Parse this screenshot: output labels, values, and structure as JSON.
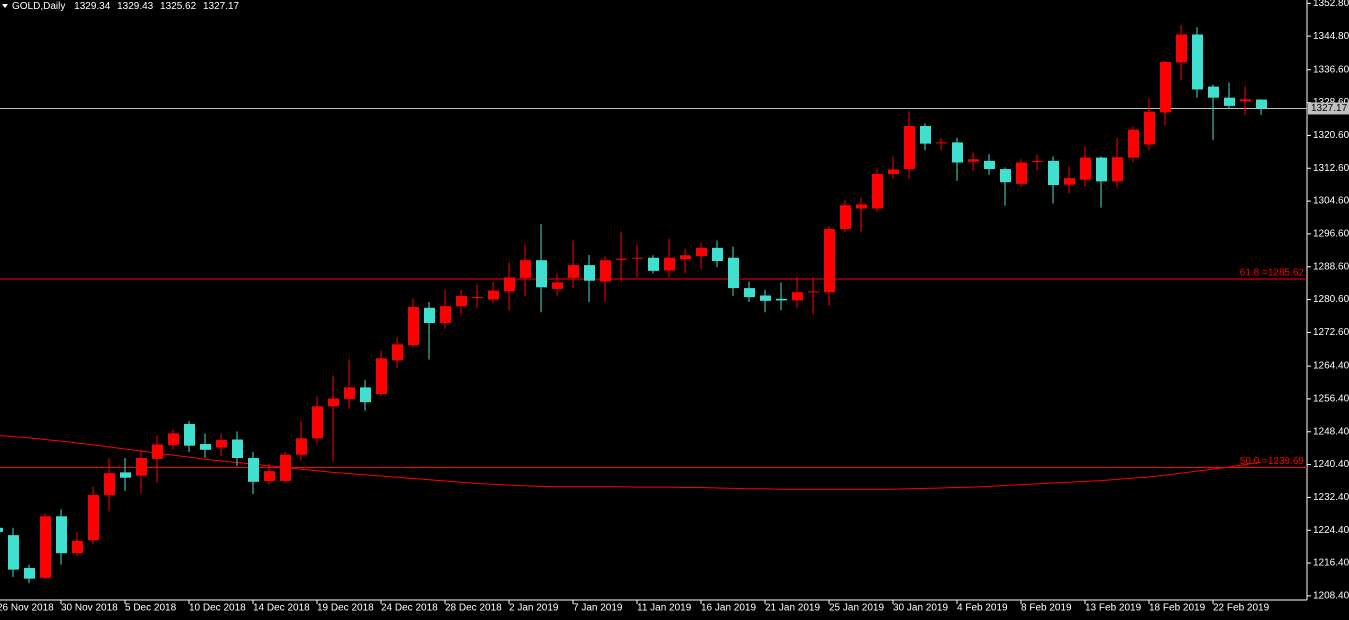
{
  "chart_data": {
    "type": "candlestick",
    "title": "GOLD,Daily",
    "categories": [
      "26 Nov 2018",
      null,
      null,
      null,
      "30 Nov 2018",
      null,
      null,
      null,
      "5 Dec 2018",
      null,
      null,
      null,
      "10 Dec 2018",
      null,
      null,
      null,
      "14 Dec 2018",
      null,
      null,
      null,
      "19 Dec 2018",
      null,
      null,
      null,
      "24 Dec 2018",
      null,
      null,
      null,
      "28 Dec 2018",
      null,
      null,
      null,
      "2 Jan 2019",
      null,
      null,
      null,
      "7 Jan 2019",
      null,
      null,
      null,
      "11 Jan 2019",
      null,
      null,
      null,
      "16 Jan 2019",
      null,
      null,
      null,
      "21 Jan 2019",
      null,
      null,
      null,
      "25 Jan 2019",
      null,
      null,
      null,
      "30 Jan 2019",
      null,
      null,
      null,
      "4 Feb 2019",
      null,
      null,
      null,
      "8 Feb 2019",
      null,
      null,
      null,
      "13 Feb 2019",
      null,
      null,
      null,
      "18 Feb 2019",
      null,
      null,
      null,
      "22 Feb 2019",
      null,
      null,
      null
    ],
    "open": [
      1225,
      1223.2,
      1215.2,
      1212.8,
      1227.8,
      1218.8,
      1222,
      1233,
      1238.5,
      1237.7,
      1241.8,
      1245.2,
      1250.3,
      1245.4,
      1244.6,
      1246.5,
      1242,
      1236.4,
      1236.4,
      1242.8,
      1246.8,
      1254.6,
      1256.4,
      1259.2,
      1257.6,
      1265.8,
      1269.5,
      1278.6,
      1274.9,
      1279,
      1281,
      1280.6,
      1282.6,
      1285.9,
      1290.2,
      1283.2,
      1285.9,
      1289,
      1285,
      1290.3,
      1290.6,
      1290.8,
      1287.7,
      1290.4,
      1291.2,
      1293.2,
      1290.8,
      1283.4,
      1281.6,
      1280.8,
      1280.4,
      1282.4,
      1282.4,
      1297.8,
      1302.8,
      1302.8,
      1311.2,
      1312.4,
      1322.9,
      1318.8,
      1318.9,
      1314.2,
      1314.4,
      1312.4,
      1308.8,
      1314.2,
      1314.4,
      1308.6,
      1309.8,
      1315.2,
      1309.4,
      1315.2,
      1318.4,
      1326.2,
      1338.4,
      1345.2,
      1332.5,
      1329.8,
      1328.9,
      1329.34
    ],
    "high": [
      1226,
      1225,
      1216,
      1228.5,
      1229.5,
      1224,
      1235,
      1242,
      1242,
      1244,
      1247.5,
      1249,
      1251,
      1248,
      1248,
      1248.5,
      1243.5,
      1240.5,
      1243.5,
      1251,
      1257,
      1262,
      1266,
      1261,
      1268.2,
      1271.5,
      1280.8,
      1280,
      1283,
      1283,
      1284.5,
      1285,
      1289.6,
      1294,
      1299,
      1287,
      1295,
      1291.5,
      1291.2,
      1297,
      1294,
      1291.4,
      1295.5,
      1293,
      1294.5,
      1295,
      1293.5,
      1285,
      1283,
      1284.8,
      1286.2,
      1286,
      1298.5,
      1305,
      1305.5,
      1312.5,
      1315.5,
      1326.5,
      1323.5,
      1320,
      1320,
      1316.5,
      1316,
      1312.8,
      1314.8,
      1316,
      1315.5,
      1313,
      1318,
      1315.5,
      1320,
      1322.8,
      1329.5,
      1338.8,
      1347.5,
      1347,
      1333,
      1333.5,
      1332.5,
      1329.43
    ],
    "low": [
      1222,
      1213,
      1211.5,
      1212.5,
      1216,
      1218,
      1221,
      1229,
      1234,
      1233.5,
      1236,
      1244,
      1243.5,
      1242,
      1242.5,
      1240,
      1233.2,
      1235.5,
      1236,
      1241.5,
      1245.5,
      1241.2,
      1254,
      1253.5,
      1257,
      1264,
      1269,
      1266,
      1273.5,
      1277,
      1278.5,
      1279.8,
      1278,
      1281.5,
      1277.5,
      1281.5,
      1283.5,
      1280,
      1280,
      1285,
      1286,
      1287,
      1286,
      1287,
      1288,
      1288.5,
      1281.5,
      1280,
      1277.5,
      1278,
      1278.5,
      1277,
      1279,
      1297,
      1297,
      1302,
      1310,
      1310,
      1317,
      1317,
      1309.5,
      1312,
      1311,
      1303.5,
      1308,
      1312,
      1304,
      1306.5,
      1308,
      1303,
      1308,
      1314,
      1317,
      1323,
      1334,
      1329.8,
      1319.5,
      1327,
      1325.5,
      1325.62
    ],
    "close": [
      1224,
      1214.8,
      1212.6,
      1227.8,
      1218.8,
      1221.8,
      1233,
      1238.3,
      1237.2,
      1242,
      1245.3,
      1248,
      1245,
      1244,
      1246.4,
      1242,
      1236.2,
      1238.8,
      1242.8,
      1246.8,
      1254.6,
      1256.5,
      1259.2,
      1255.6,
      1266.3,
      1269.7,
      1278.8,
      1274.9,
      1279,
      1281.5,
      1281.2,
      1282.8,
      1286,
      1290.2,
      1283.6,
      1284.8,
      1289,
      1285.2,
      1290.2,
      1290.6,
      1290.8,
      1287.6,
      1290.8,
      1291.4,
      1293.2,
      1290,
      1283.4,
      1281.2,
      1280.3,
      1280.4,
      1282.4,
      1282.6,
      1297.8,
      1303.6,
      1303.8,
      1311.2,
      1312.3,
      1322.9,
      1318.6,
      1318.9,
      1314,
      1314.8,
      1312.4,
      1309.2,
      1314,
      1314.4,
      1308.5,
      1310.2,
      1315.2,
      1309.4,
      1315.3,
      1322,
      1326.4,
      1338.5,
      1345.2,
      1331.8,
      1329.8,
      1327.8,
      1329.4,
      1327.17
    ],
    "up_color": "#ff0000",
    "down_color": "#40e0d0",
    "moving_average": {
      "color": "#ff0000",
      "values": [
        1247.5,
        1247.2,
        1246.9,
        1246.5,
        1246.1,
        1245.7,
        1245.2,
        1244.7,
        1244.2,
        1243.7,
        1243.2,
        1242.7,
        1242.2,
        1241.7,
        1241.3,
        1240.9,
        1240.5,
        1240.1,
        1239.7,
        1239.3,
        1238.9,
        1238.5,
        1238.2,
        1237.9,
        1237.6,
        1237.3,
        1237,
        1236.7,
        1236.4,
        1236.1,
        1235.8,
        1235.6,
        1235.4,
        1235.2,
        1235.1,
        1235,
        1235,
        1235,
        1235,
        1235,
        1234.9,
        1234.9,
        1234.9,
        1234.8,
        1234.8,
        1234.7,
        1234.6,
        1234.5,
        1234.5,
        1234.4,
        1234.4,
        1234.4,
        1234.4,
        1234.4,
        1234.4,
        1234.4,
        1234.4,
        1234.5,
        1234.6,
        1234.7,
        1234.8,
        1234.9,
        1235.1,
        1235.3,
        1235.5,
        1235.7,
        1235.9,
        1236.1,
        1236.3,
        1236.5,
        1236.8,
        1237.1,
        1237.4,
        1237.8,
        1238.3,
        1238.8,
        1239.3,
        1239.8,
        1240.4,
        1241
      ]
    },
    "levels": [
      {
        "value": 1285.62,
        "label": "61.8 =1285.62",
        "color": "#ff0000"
      },
      {
        "value": 1239.69,
        "label": "50.0 =1239.69",
        "color": "#ff0000"
      }
    ],
    "price_line_color": "#c0c0c0",
    "ylim": [
      1207.4,
      1353.6
    ],
    "yticks": [
      {
        "value": 1208.4,
        "label": "1208.40"
      },
      {
        "value": 1216.4,
        "label": "1216.40"
      },
      {
        "value": 1224.4,
        "label": "1224.40"
      },
      {
        "value": 1232.4,
        "label": "1232.40"
      },
      {
        "value": 1240.4,
        "label": "1240.40"
      },
      {
        "value": 1248.4,
        "label": "1248.40"
      },
      {
        "value": 1256.4,
        "label": "1256.40"
      },
      {
        "value": 1264.4,
        "label": "1264.40"
      },
      {
        "value": 1272.6,
        "label": "1272.60"
      },
      {
        "value": 1280.6,
        "label": "1280.60"
      },
      {
        "value": 1288.6,
        "label": "1288.60"
      },
      {
        "value": 1296.6,
        "label": "1296.60"
      },
      {
        "value": 1304.6,
        "label": "1304.60"
      },
      {
        "value": 1312.6,
        "label": "1312.60"
      },
      {
        "value": 1320.6,
        "label": "1320.60"
      },
      {
        "value": 1328.6,
        "label": "1328.60"
      },
      {
        "value": 1336.6,
        "label": "1336.60"
      },
      {
        "value": 1344.8,
        "label": "1344.80"
      },
      {
        "value": 1352.8,
        "label": "1352.80"
      }
    ]
  }
}
